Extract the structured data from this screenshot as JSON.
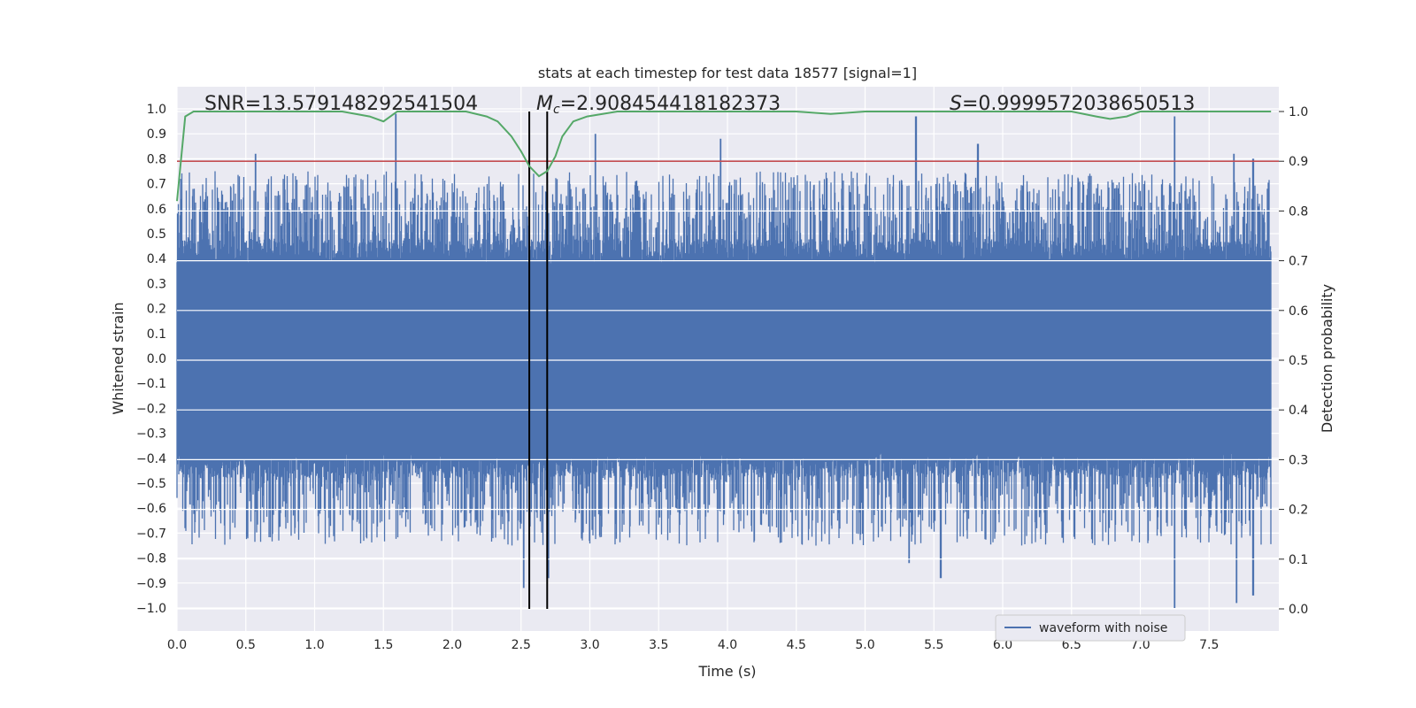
{
  "chart_data": {
    "type": "line",
    "title": "stats at each timestep for test data 18577 [signal=1]",
    "xlabel": "Time (s)",
    "ylabel": "Whitened strain",
    "y2label": "Detection probability",
    "xlim": [
      0.0,
      8.0
    ],
    "ylim": [
      -1.1,
      1.1
    ],
    "y2lim": [
      -0.05,
      1.05
    ],
    "x_ticks": [
      "0.0",
      "0.5",
      "1.0",
      "1.5",
      "2.0",
      "2.5",
      "3.0",
      "3.5",
      "4.0",
      "4.5",
      "5.0",
      "5.5",
      "6.0",
      "6.5",
      "7.0",
      "7.5"
    ],
    "y_ticks": [
      "1.0",
      "0.9",
      "0.8",
      "0.7",
      "0.6",
      "0.5",
      "0.4",
      "0.3",
      "0.2",
      "0.1",
      "0.0",
      "−0.1",
      "−0.2",
      "−0.3",
      "−0.4",
      "−0.5",
      "−0.6",
      "−0.7",
      "−0.8",
      "−0.9",
      "−1.0"
    ],
    "y2_ticks": [
      "1.0",
      "0.9",
      "0.8",
      "0.7",
      "0.6",
      "0.5",
      "0.4",
      "0.3",
      "0.2",
      "0.1",
      "0.0"
    ],
    "annotations": {
      "snr": "SNR=13.579148292541504",
      "mc": "=2.908454418182373",
      "mc_symbol": "M",
      "mc_sub": "c",
      "s_symbol": "S",
      "s": "=0.9999572038650513"
    },
    "threshold": {
      "value": 0.9,
      "axis": "right",
      "color": "#c44e52"
    },
    "vlines": [
      2.56,
      2.69
    ],
    "series": [
      {
        "name": "waveform with noise",
        "axis": "left",
        "color": "#4c72b0",
        "style": "dense noise, amplitude mostly within ±0.45 with spikes to ±1.0",
        "peaks": [
          {
            "x": 0.57,
            "y": 0.82
          },
          {
            "x": 1.59,
            "y": 0.98
          },
          {
            "x": 3.04,
            "y": 0.9
          },
          {
            "x": 3.95,
            "y": 0.88
          },
          {
            "x": 5.37,
            "y": 0.97
          },
          {
            "x": 5.82,
            "y": 0.86
          },
          {
            "x": 7.25,
            "y": 0.97
          },
          {
            "x": 7.68,
            "y": 0.82
          },
          {
            "x": 7.82,
            "y": 0.8
          },
          {
            "x": 7.25,
            "y": -1.0
          },
          {
            "x": 7.7,
            "y": -0.98
          },
          {
            "x": 7.82,
            "y": -0.95
          },
          {
            "x": 2.52,
            "y": -0.92
          },
          {
            "x": 2.7,
            "y": -0.88
          },
          {
            "x": 5.55,
            "y": -0.88
          },
          {
            "x": 5.32,
            "y": -0.82
          }
        ]
      },
      {
        "name": "",
        "axis": "right",
        "color": "#55a868",
        "x": [
          0.0,
          0.06,
          0.12,
          0.3,
          1.2,
          1.4,
          1.5,
          1.6,
          2.1,
          2.25,
          2.33,
          2.43,
          2.5,
          2.56,
          2.63,
          2.69,
          2.75,
          2.8,
          2.88,
          2.98,
          3.2,
          4.5,
          4.75,
          5.0,
          6.5,
          6.68,
          6.78,
          6.9,
          7.0,
          7.2,
          7.95
        ],
        "values": [
          0.82,
          0.99,
          1.0,
          1.0,
          1.0,
          0.99,
          0.98,
          1.0,
          1.0,
          0.99,
          0.98,
          0.95,
          0.92,
          0.89,
          0.87,
          0.88,
          0.91,
          0.95,
          0.98,
          0.99,
          1.0,
          1.0,
          0.995,
          1.0,
          1.0,
          0.99,
          0.985,
          0.99,
          1.0,
          1.0,
          1.0
        ]
      }
    ],
    "legend": {
      "placement": "lower-right",
      "entries": [
        "waveform with noise"
      ]
    },
    "grid": true,
    "colors": {
      "axes_bg": "#eaeaf2",
      "grid": "#ffffff",
      "vline": "#000000"
    }
  }
}
